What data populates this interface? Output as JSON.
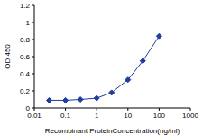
{
  "chart_data": {
    "type": "line",
    "x_label": "Recombinant ProteinConcentration(ng/ml)",
    "y_label": "OD 450",
    "x": [
      0.03,
      0.1,
      0.3,
      1,
      3,
      10,
      30,
      100
    ],
    "values": [
      0.09,
      0.09,
      0.1,
      0.115,
      0.18,
      0.33,
      0.55,
      0.84
    ],
    "color": "#1f3c9e",
    "marker": "diamond",
    "log": "x",
    "xlim": [
      0.01,
      1000
    ],
    "xticks": [
      0.01,
      0.1,
      1,
      10,
      100,
      1000
    ],
    "ylim": [
      0,
      1.2
    ],
    "yticks": [
      0,
      0.2,
      0.4,
      0.6,
      0.8,
      1,
      1.2
    ],
    "grid": false
  }
}
